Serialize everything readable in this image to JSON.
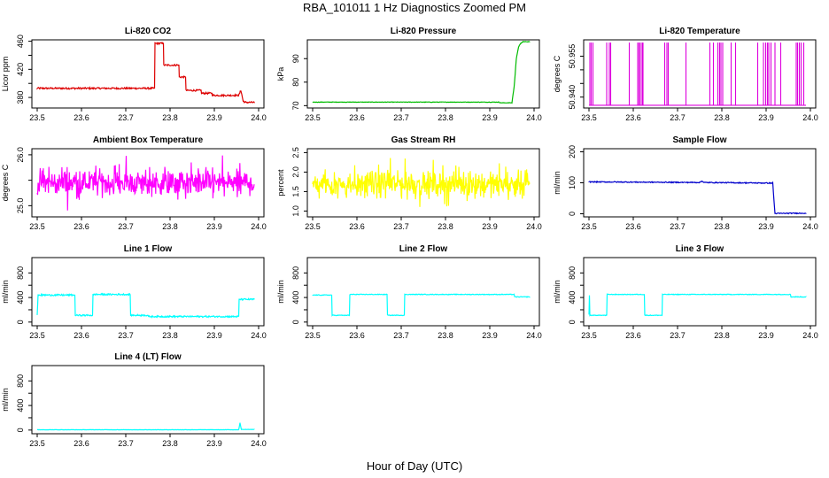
{
  "figure": {
    "title": "RBA_101011  1 Hz Diagnostics Zoomed PM",
    "xlabel": "Hour of Day (UTC)"
  },
  "chart_data": [
    {
      "type": "line",
      "title": "Li-820 CO2",
      "ylabel": "Licor ppm",
      "color": "#dd0000",
      "xlim": [
        23.5,
        24.0
      ],
      "ylim": [
        365,
        462
      ],
      "xticks": [
        23.5,
        23.6,
        23.7,
        23.8,
        23.9,
        24.0
      ],
      "xtick_labels": [
        "23.5",
        "23.6",
        "23.7",
        "23.8",
        "23.9",
        "24.0"
      ],
      "yticks": [
        380,
        400,
        420,
        440,
        460
      ],
      "ytick_labels": [
        "380",
        "",
        "420",
        "",
        "460"
      ],
      "series": [
        {
          "x": [
            23.5,
            23.765,
            23.765,
            23.785,
            23.785,
            23.82,
            23.82,
            23.835,
            23.835,
            23.87,
            23.87,
            23.895,
            23.895,
            23.955,
            23.96,
            23.965,
            23.97,
            23.99
          ],
          "y": [
            393,
            393,
            457,
            457,
            426,
            426,
            409,
            409,
            390,
            390,
            386,
            386,
            383,
            383,
            390,
            375,
            373,
            373
          ],
          "noise": 1.2
        }
      ]
    },
    {
      "type": "line",
      "title": "Li-820 Pressure",
      "ylabel": "kPa",
      "color": "#00bb00",
      "xlim": [
        23.5,
        24.0
      ],
      "ylim": [
        69,
        98
      ],
      "xticks": [
        23.5,
        23.6,
        23.7,
        23.8,
        23.9,
        24.0
      ],
      "xtick_labels": [
        "23.5",
        "23.6",
        "23.7",
        "23.8",
        "23.9",
        "24.0"
      ],
      "yticks": [
        70,
        80,
        90
      ],
      "ytick_labels": [
        "70",
        "80",
        "90"
      ],
      "series": [
        {
          "x": [
            23.5,
            23.92,
            23.925,
            23.95,
            23.955,
            23.96,
            23.965,
            23.97,
            23.975,
            23.99
          ],
          "y": [
            71.5,
            71.5,
            71.2,
            71.2,
            78,
            90,
            95,
            96.5,
            97.2,
            97.2
          ],
          "noise": 0.1
        }
      ]
    },
    {
      "type": "line",
      "title": "Li-820 Temperature",
      "ylabel": "degrees C",
      "color": "#dd00dd",
      "xlim": [
        23.5,
        24.0
      ],
      "ylim": [
        50.936,
        50.961
      ],
      "xticks": [
        23.5,
        23.6,
        23.7,
        23.8,
        23.9,
        24.0
      ],
      "xtick_labels": [
        "23.5",
        "23.6",
        "23.7",
        "23.8",
        "23.9",
        "24.0"
      ],
      "yticks": [
        50.94,
        50.945,
        50.95,
        50.955
      ],
      "ytick_labels": [
        "50.940",
        "",
        "",
        "50.955"
      ],
      "series": [
        {
          "baseline": 50.937,
          "high": 50.96,
          "spikes_x": [
            23.502,
            23.505,
            23.509,
            23.54,
            23.546,
            23.549,
            23.591,
            23.61,
            23.613,
            23.616,
            23.62,
            23.622,
            23.671,
            23.676,
            23.679,
            23.719,
            23.773,
            23.781,
            23.791,
            23.795,
            23.798,
            23.802,
            23.821,
            23.831,
            23.881,
            23.894,
            23.899,
            23.903,
            23.906,
            23.911,
            23.92,
            23.933,
            23.968,
            23.971,
            23.975,
            23.979,
            23.985
          ]
        }
      ]
    },
    {
      "type": "line",
      "title": "Ambient Box Temperature",
      "ylabel": "degrees C",
      "color": "#ff00ff",
      "xlim": [
        23.5,
        24.0
      ],
      "ylim": [
        24.78,
        26.12
      ],
      "xticks": [
        23.5,
        23.6,
        23.7,
        23.8,
        23.9,
        24.0
      ],
      "xtick_labels": [
        "23.5",
        "23.6",
        "23.7",
        "23.8",
        "23.9",
        "24.0"
      ],
      "yticks": [
        25.0,
        25.5,
        26.0
      ],
      "ytick_labels": [
        "25.0",
        "",
        "26.0"
      ],
      "series": [
        {
          "x": [
            23.5,
            23.99
          ],
          "y": [
            25.3,
            25.3
          ],
          "noise_low": 24.82,
          "noise_high": 26.08
        }
      ]
    },
    {
      "type": "line",
      "title": "Gas Stream RH",
      "ylabel": "percent",
      "color": "#ffff00",
      "xlim": [
        23.5,
        24.0
      ],
      "ylim": [
        0.85,
        2.6
      ],
      "xticks": [
        23.5,
        23.6,
        23.7,
        23.8,
        23.9,
        24.0
      ],
      "xtick_labels": [
        "23.5",
        "23.6",
        "23.7",
        "23.8",
        "23.9",
        "24.0"
      ],
      "yticks": [
        1.0,
        1.5,
        2.0,
        2.5
      ],
      "ytick_labels": [
        "1.0",
        "1.5",
        "2.0",
        "2.5"
      ],
      "series": [
        {
          "x": [
            23.5,
            23.99
          ],
          "y": [
            1.5,
            1.5
          ],
          "noise_low": 0.9,
          "noise_high": 2.5
        }
      ]
    },
    {
      "type": "line",
      "title": "Sample Flow",
      "ylabel": "ml/min",
      "color": "#0000cc",
      "xlim": [
        23.5,
        24.0
      ],
      "ylim": [
        -10,
        210
      ],
      "xticks": [
        23.5,
        23.6,
        23.7,
        23.8,
        23.9,
        24.0
      ],
      "xtick_labels": [
        "23.5",
        "23.6",
        "23.7",
        "23.8",
        "23.9",
        "24.0"
      ],
      "yticks": [
        0,
        100,
        200
      ],
      "ytick_labels": [
        "0",
        "100",
        "200"
      ],
      "series": [
        {
          "x": [
            23.5,
            23.75,
            23.755,
            23.76,
            23.915,
            23.92,
            23.99
          ],
          "y": [
            103,
            101,
            106,
            101,
            99,
            1,
            2
          ],
          "noise": 1.5
        }
      ]
    },
    {
      "type": "line",
      "title": "Line 1 Flow",
      "ylabel": "ml/min",
      "color": "#00ffff",
      "xlim": [
        23.5,
        24.0
      ],
      "ylim": [
        -60,
        1050
      ],
      "xticks": [
        23.5,
        23.6,
        23.7,
        23.8,
        23.9,
        24.0
      ],
      "xtick_labels": [
        "23.5",
        "23.6",
        "23.7",
        "23.8",
        "23.9",
        "24.0"
      ],
      "yticks": [
        0,
        200,
        400,
        600,
        800
      ],
      "ytick_labels": [
        "0",
        "400",
        "800"
      ],
      "series": [
        {
          "x": [
            23.5,
            23.502,
            23.585,
            23.586,
            23.625,
            23.626,
            23.71,
            23.711,
            23.75,
            23.751,
            23.955,
            23.956,
            23.99
          ],
          "y": [
            120,
            440,
            440,
            110,
            110,
            450,
            450,
            110,
            110,
            90,
            90,
            370,
            370
          ],
          "noise": 12
        }
      ]
    },
    {
      "type": "line",
      "title": "Line 2 Flow",
      "ylabel": "ml/min",
      "color": "#00ffff",
      "xlim": [
        23.5,
        24.0
      ],
      "ylim": [
        -60,
        1050
      ],
      "xticks": [
        23.5,
        23.6,
        23.7,
        23.8,
        23.9,
        24.0
      ],
      "xtick_labels": [
        "23.5",
        "23.6",
        "23.7",
        "23.8",
        "23.9",
        "24.0"
      ],
      "yticks": [
        0,
        200,
        400,
        600,
        800
      ],
      "ytick_labels": [
        "0",
        "400",
        "800"
      ],
      "series": [
        {
          "x": [
            23.5,
            23.543,
            23.544,
            23.583,
            23.584,
            23.668,
            23.669,
            23.707,
            23.708,
            23.955,
            23.956,
            23.99
          ],
          "y": [
            440,
            440,
            110,
            110,
            450,
            450,
            110,
            110,
            450,
            450,
            410,
            410
          ],
          "noise": 5
        }
      ]
    },
    {
      "type": "line",
      "title": "Line 3 Flow",
      "ylabel": "ml/min",
      "color": "#00ffff",
      "xlim": [
        23.5,
        24.0
      ],
      "ylim": [
        -60,
        1050
      ],
      "xticks": [
        23.5,
        23.6,
        23.7,
        23.8,
        23.9,
        24.0
      ],
      "xtick_labels": [
        "23.5",
        "23.6",
        "23.7",
        "23.8",
        "23.9",
        "24.0"
      ],
      "yticks": [
        0,
        200,
        400,
        600,
        800
      ],
      "ytick_labels": [
        "0",
        "400",
        "800"
      ],
      "series": [
        {
          "x": [
            23.5,
            23.501,
            23.502,
            23.54,
            23.541,
            23.625,
            23.626,
            23.665,
            23.666,
            23.955,
            23.956,
            23.99
          ],
          "y": [
            120,
            440,
            110,
            110,
            450,
            450,
            110,
            110,
            450,
            450,
            410,
            410
          ],
          "noise": 5
        }
      ]
    },
    {
      "type": "line",
      "title": "Line 4 (LT) Flow",
      "ylabel": "ml/min",
      "color": "#00ffff",
      "xlim": [
        23.5,
        24.0
      ],
      "ylim": [
        -60,
        1050
      ],
      "xticks": [
        23.5,
        23.6,
        23.7,
        23.8,
        23.9,
        24.0
      ],
      "xtick_labels": [
        "23.5",
        "23.6",
        "23.7",
        "23.8",
        "23.9",
        "24.0"
      ],
      "yticks": [
        0,
        200,
        400,
        600,
        800
      ],
      "ytick_labels": [
        "0",
        "400",
        "800"
      ],
      "series": [
        {
          "x": [
            23.5,
            23.955,
            23.958,
            23.961,
            23.99
          ],
          "y": [
            5,
            5,
            120,
            10,
            10
          ],
          "noise": 2
        }
      ]
    }
  ]
}
